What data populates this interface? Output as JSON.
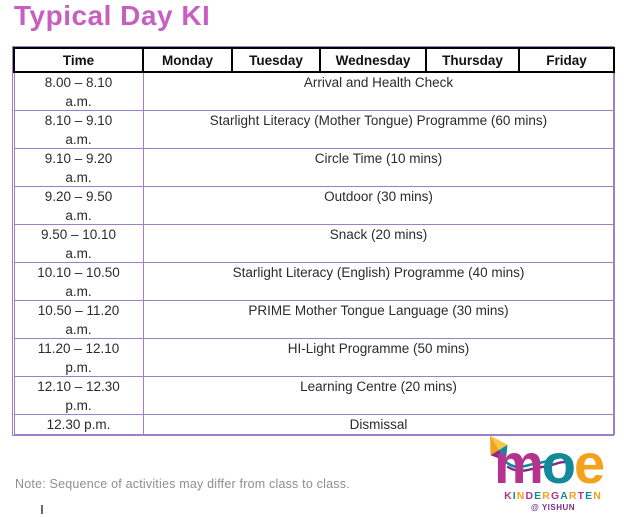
{
  "page": {
    "title": "Typical Day KI"
  },
  "table": {
    "headers": [
      "Time",
      "Monday",
      "Tuesday",
      "Wednesday",
      "Thursday",
      "Friday"
    ],
    "rows": [
      {
        "time1": "8.00 – 8.10",
        "time2": "a.m.",
        "activity": "Arrival and Health Check"
      },
      {
        "time1": "8.10 – 9.10",
        "time2": "a.m.",
        "activity": "Starlight Literacy (Mother Tongue) Programme (60 mins)"
      },
      {
        "time1": "9.10 – 9.20",
        "time2": "a.m.",
        "activity": "Circle Time (10 mins)"
      },
      {
        "time1": "9.20 – 9.50",
        "time2": "a.m.",
        "activity": "Outdoor (30 mins)"
      },
      {
        "time1": "9.50 – 10.10",
        "time2": "a.m.",
        "activity": "Snack (20 mins)"
      },
      {
        "time1": "10.10 – 10.50",
        "time2": "a.m.",
        "activity": "Starlight Literacy (English) Programme (40 mins)"
      },
      {
        "time1": "10.50 – 11.20",
        "time2": "a.m.",
        "activity": "PRIME Mother Tongue Language (30 mins)"
      },
      {
        "time1": "11.20 – 12.10",
        "time2": "p.m.",
        "activity": "HI-Light Programme (50 mins)"
      },
      {
        "time1": "12.10 – 12.30",
        "time2": "p.m.",
        "activity": "Learning Centre (20 mins)"
      },
      {
        "time1": "12.30 p.m.",
        "time2": "",
        "activity": "Dismissal"
      }
    ]
  },
  "note": "Note: Sequence of activities may differ from class to class.",
  "logo": {
    "brand": "moe",
    "sub": "KINDERGARTEN",
    "location": "@ YISHUN"
  },
  "colors": {
    "title": "#c75fc0",
    "table_border": "#9f7fc4",
    "header_border": "#000000",
    "note": "#8f8f8f",
    "logo_magenta": "#b5338e",
    "logo_teal": "#128a9a",
    "logo_orange": "#f4a11d",
    "logo_yellow": "#f7c844",
    "logo_purple": "#7c2d8e"
  }
}
